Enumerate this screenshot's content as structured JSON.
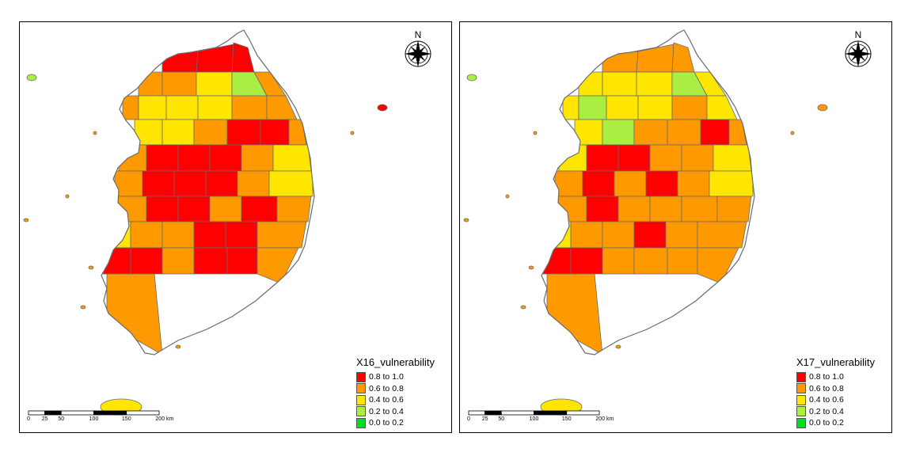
{
  "panels": [
    {
      "legend_title": "X16_vulnerability",
      "region_classes": [
        4,
        4,
        4,
        3,
        3,
        2,
        1,
        3,
        3,
        2,
        2,
        2,
        3,
        3,
        2,
        2,
        3,
        4,
        4,
        3,
        3,
        4,
        4,
        4,
        3,
        2,
        3,
        4,
        4,
        4,
        3,
        2,
        3,
        4,
        4,
        3,
        4,
        3,
        2,
        3,
        3,
        4,
        4,
        3,
        4,
        4,
        3,
        4,
        4,
        3,
        3
      ]
    },
    {
      "legend_title": "X17_vulnerability",
      "region_classes": [
        3,
        3,
        3,
        2,
        2,
        2,
        1,
        2,
        2,
        1,
        2,
        2,
        3,
        2,
        2,
        1,
        3,
        3,
        4,
        3,
        2,
        4,
        4,
        3,
        3,
        2,
        3,
        4,
        3,
        4,
        3,
        2,
        3,
        4,
        3,
        3,
        3,
        3,
        2,
        3,
        3,
        4,
        3,
        3,
        4,
        4,
        3,
        3,
        3,
        3,
        3
      ]
    }
  ],
  "north_label": "N",
  "legend_items": [
    {
      "label": "0.8 to 1.0",
      "color": "#ff0000"
    },
    {
      "label": "0.6 to 0.8",
      "color": "#ff9900"
    },
    {
      "label": "0.4 to 0.6",
      "color": "#ffe600"
    },
    {
      "label": "0.2 to 0.4",
      "color": "#aaee44"
    },
    {
      "label": "0.0 to 0.2",
      "color": "#00dd22"
    }
  ],
  "class_colors": [
    "#00dd22",
    "#aaee44",
    "#ffe600",
    "#ff9900",
    "#ff0000"
  ],
  "scale_ticks": [
    {
      "label": "0",
      "value": 0
    },
    {
      "label": "25",
      "value": 25
    },
    {
      "label": "50",
      "value": 50
    },
    {
      "label": "100",
      "value": 100
    },
    {
      "label": "150",
      "value": 150
    },
    {
      "label": "200 km",
      "value": 200
    }
  ]
}
